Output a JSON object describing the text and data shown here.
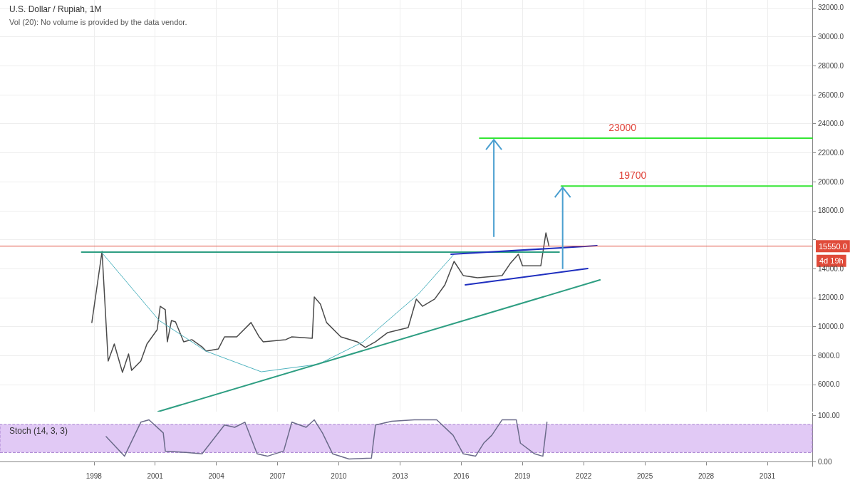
{
  "chart_data": [
    {
      "type": "line",
      "title": "U.S. Dollar / Rupiah, 1M",
      "subtitle": "Vol (20): No volume is provided by the data vendor.",
      "xlim": [
        1993.4,
        2033.2
      ],
      "ylim": [
        4130,
        32540
      ],
      "xticks": [
        1998,
        2001,
        2004,
        2007,
        2010,
        2013,
        2016,
        2019,
        2022,
        2025,
        2028,
        2031
      ],
      "yticks": [
        {
          "value": 6000,
          "label": "6000.0"
        },
        {
          "value": 8000,
          "label": "8000.0"
        },
        {
          "value": 10000,
          "label": "10000.0"
        },
        {
          "value": 12000,
          "label": "12000.0"
        },
        {
          "value": 14000,
          "label": "14000.0"
        },
        {
          "value": 16000,
          "label": null
        },
        {
          "value": 18000,
          "label": "18000.0"
        },
        {
          "value": 20000,
          "label": "20000.0"
        },
        {
          "value": 22000,
          "label": "22000.0"
        },
        {
          "value": 24000,
          "label": "24000.0"
        },
        {
          "value": 26000,
          "label": "26000.0"
        },
        {
          "value": 28000,
          "label": "28000.0"
        },
        {
          "value": 30000,
          "label": "30000.0"
        },
        {
          "value": 32000,
          "label": "32000.0"
        }
      ],
      "tick_labels": "y",
      "grid": true,
      "marker": "none",
      "series": [
        {
          "color": "#4a4a4a",
          "x": [
            1997.9,
            1998.4,
            1998.7,
            1999.0,
            1999.4,
            1999.7,
            1999.85,
            2000.3,
            2000.6,
            2001.1,
            2001.25,
            2001.5,
            2001.6,
            2001.8,
            2002.0,
            2002.4,
            2002.8,
            2003.3,
            2003.5,
            2004.1,
            2004.4,
            2005.0,
            2005.7,
            2006.1,
            2006.3,
            2007.4,
            2007.7,
            2008.7,
            2008.8,
            2009.1,
            2009.4,
            2010.1,
            2010.9,
            2011.3,
            2011.8,
            2012.4,
            2013.4,
            2013.8,
            2014.1,
            2014.7,
            2015.2,
            2015.65,
            2016.1,
            2016.8,
            2018.0,
            2018.4,
            2018.8,
            2019.0,
            2019.9,
            2020.15,
            2020.3
          ],
          "values": [
            10280,
            15190,
            7620,
            8800,
            6840,
            8110,
            6980,
            7620,
            8800,
            9780,
            11400,
            11160,
            8950,
            10420,
            10320,
            8950,
            9100,
            8600,
            8310,
            8460,
            9290,
            9290,
            10280,
            9290,
            8950,
            9100,
            9290,
            9190,
            12040,
            11550,
            10280,
            9290,
            8950,
            8560,
            8950,
            9590,
            9930,
            11900,
            11400,
            11900,
            12880,
            14500,
            13520,
            13370,
            13520,
            14350,
            14990,
            14200,
            14200,
            16470,
            15550
          ]
        },
        {
          "color": "#4fb3bf",
          "x": [
            1998.4,
            2001.2,
            2003.5,
            2006.2,
            2009.0,
            2011.2,
            2013.9,
            2015.65
          ],
          "values": [
            15090,
            10420,
            8300,
            6880,
            7400,
            8950,
            12240,
            15000
          ]
        },
        {
          "color": "#2e9e82",
          "x": [
            1997.4,
            2020.8
          ],
          "values": [
            15140,
            15140
          ]
        },
        {
          "color": "#2e9e82",
          "x": [
            2001.15,
            2022.8
          ],
          "values": [
            4130,
            13220
          ]
        },
        {
          "color": "#1f2fbf",
          "x": [
            2015.5,
            2022.65
          ],
          "values": [
            14990,
            15580
          ]
        },
        {
          "color": "#1f2fbf",
          "x": [
            2016.2,
            2022.2
          ],
          "values": [
            12880,
            14010
          ]
        },
        {
          "color": "#33e633",
          "x": [
            2016.9,
            2033.2
          ],
          "values": [
            23000,
            23000
          ]
        },
        {
          "color": "#33e633",
          "x": [
            2020.9,
            2033.2
          ],
          "values": [
            19700,
            19700
          ]
        }
      ],
      "ref_lines": [
        {
          "axis": "y",
          "value": 15550,
          "label": "15550.0",
          "color": "#e04b3a"
        }
      ],
      "annotations": [
        {
          "text": "23000",
          "x": 2023.9,
          "y": 23000
        },
        {
          "text": "19700",
          "x": 2024.4,
          "y": 19700
        },
        "4d 19h"
      ]
    },
    {
      "type": "line",
      "title": "Stoch (14, 3, 3)",
      "xlim": [
        1993.4,
        2033.2
      ],
      "ylim": [
        -10,
        104
      ],
      "xticks": [
        1998,
        2001,
        2004,
        2007,
        2010,
        2013,
        2016,
        2019,
        2022,
        2025,
        2028,
        2031
      ],
      "yticks": [
        {
          "value": 0,
          "label": "0.00"
        },
        {
          "value": 100,
          "label": "100.00"
        }
      ],
      "marker": "none",
      "series": [
        {
          "color": "#6b6b8a",
          "x": [
            1998.6,
            1999.5,
            2000.3,
            2000.7,
            2001.4,
            2001.5,
            2002.5,
            2003.3,
            2004.4,
            2004.9,
            2005.4,
            2006.0,
            2006.5,
            2007.3,
            2007.7,
            2008.4,
            2008.8,
            2009.2,
            2009.7,
            2010.5,
            2011.6,
            2011.8,
            2012.6,
            2013.7,
            2014.8,
            2015.6,
            2016.1,
            2016.7,
            2017.1,
            2017.5,
            2018.0,
            2018.7,
            2018.9,
            2019.6,
            2020.0,
            2020.2
          ],
          "values": [
            54,
            12,
            85,
            90,
            62,
            23,
            20,
            17,
            79,
            74,
            85,
            17,
            12,
            23,
            85,
            74,
            90,
            62,
            17,
            6,
            8,
            79,
            87,
            90,
            90,
            57,
            17,
            12,
            40,
            57,
            90,
            90,
            40,
            17,
            12,
            85
          ]
        }
      ],
      "bands": [
        {
          "axis": "y",
          "from": 20,
          "to": 80,
          "color": "#e1c9f5"
        }
      ]
    }
  ]
}
